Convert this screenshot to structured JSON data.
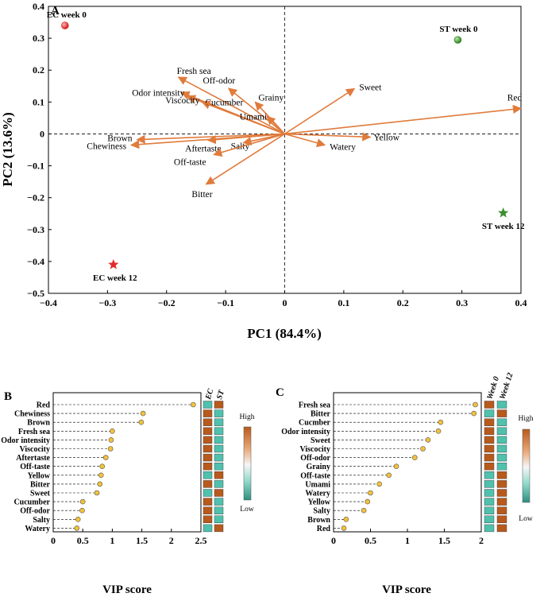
{
  "colors": {
    "arrow": "#e07b3c",
    "high": "#b85a1c",
    "low": "#4fc1ad",
    "ec": "#e32b2b",
    "st": "#3b8f2e",
    "dot": "#f2c23a"
  },
  "chart_data": [
    {
      "type": "scatter",
      "panel": "A",
      "xlabel": "PC1 (84.4%)",
      "ylabel": "PC2 (13.6%)",
      "xlim": [
        -0.4,
        0.4
      ],
      "ylim": [
        -0.5,
        0.4
      ],
      "xticks": [
        -0.4,
        -0.3,
        -0.2,
        -0.1,
        0,
        0.1,
        0.2,
        0.3,
        0.4
      ],
      "yticks": [
        0.4,
        0.3,
        0.2,
        0.1,
        0,
        -0.1,
        -0.2,
        -0.3,
        -0.4,
        -0.5
      ],
      "xtick_labels": [
        "−0.4",
        "−0.3",
        "−0.2",
        "−0.1",
        "0",
        "0.1",
        "0.2",
        "0.3",
        "0.4"
      ],
      "ytick_labels": [
        "0.4",
        "0.3",
        "0.2",
        "0.1",
        "0",
        "−0.1",
        "−0.2",
        "−0.3",
        "−0.4",
        "−0.5"
      ],
      "samples": [
        {
          "name": "EC week 0",
          "x": -0.372,
          "y": 0.34,
          "marker": "circle",
          "color_key": "ec"
        },
        {
          "name": "ST week 0",
          "x": 0.293,
          "y": 0.295,
          "marker": "circle",
          "color_key": "st"
        },
        {
          "name": "EC week 12",
          "x": -0.29,
          "y": -0.41,
          "marker": "star",
          "color_key": "ec"
        },
        {
          "name": "ST week 12",
          "x": 0.37,
          "y": -0.248,
          "marker": "star",
          "color_key": "st"
        }
      ],
      "loadings": [
        {
          "name": "Red",
          "x": 0.4,
          "y": 0.08
        },
        {
          "name": "Sweet",
          "x": 0.118,
          "y": 0.142
        },
        {
          "name": "Yellow",
          "x": 0.145,
          "y": -0.01
        },
        {
          "name": "Watery",
          "x": 0.068,
          "y": -0.035
        },
        {
          "name": "Fresh sea",
          "x": -0.18,
          "y": 0.178
        },
        {
          "name": "Off-odor",
          "x": -0.095,
          "y": 0.143
        },
        {
          "name": "Odor intensity",
          "x": -0.175,
          "y": 0.13
        },
        {
          "name": "Cucumber",
          "x": -0.14,
          "y": 0.1
        },
        {
          "name": "Viscocity",
          "x": -0.165,
          "y": 0.118
        },
        {
          "name": "Grainy",
          "x": -0.05,
          "y": 0.1
        },
        {
          "name": "Umami",
          "x": -0.03,
          "y": 0.055
        },
        {
          "name": "Brown",
          "x": -0.25,
          "y": -0.018
        },
        {
          "name": "Chewiness",
          "x": -0.26,
          "y": -0.035
        },
        {
          "name": "Aftertaste",
          "x": -0.13,
          "y": -0.02
        },
        {
          "name": "Salty",
          "x": -0.07,
          "y": -0.028
        },
        {
          "name": "Off-taste",
          "x": -0.12,
          "y": -0.065
        },
        {
          "name": "Bitter",
          "x": -0.133,
          "y": -0.158
        }
      ]
    },
    {
      "type": "scatter",
      "panel": "B",
      "xlabel": "VIP score",
      "xlim": [
        0,
        2.5
      ],
      "xticks": [
        0,
        0.5,
        1,
        1.5,
        2,
        2.5
      ],
      "xtick_labels": [
        "0",
        "0.5",
        "1",
        "1.5",
        "2",
        "2.5"
      ],
      "columns": [
        "EC",
        "ST"
      ],
      "legend": {
        "high": "High",
        "low": "Low"
      },
      "rows": [
        {
          "name": "Red",
          "vip": 2.37,
          "cells": [
            "low",
            "high"
          ]
        },
        {
          "name": "Chewiness",
          "vip": 1.52,
          "cells": [
            "high",
            "low"
          ]
        },
        {
          "name": "Brown",
          "vip": 1.49,
          "cells": [
            "high",
            "low"
          ]
        },
        {
          "name": "Fresh sea",
          "vip": 1.0,
          "cells": [
            "high",
            "low"
          ]
        },
        {
          "name": "Odor intensity",
          "vip": 0.98,
          "cells": [
            "high",
            "low"
          ]
        },
        {
          "name": "Viscocity",
          "vip": 0.97,
          "cells": [
            "high",
            "low"
          ]
        },
        {
          "name": "Aftertaste",
          "vip": 0.89,
          "cells": [
            "high",
            "low"
          ]
        },
        {
          "name": "Off-taste",
          "vip": 0.83,
          "cells": [
            "high",
            "low"
          ]
        },
        {
          "name": "Yellow",
          "vip": 0.81,
          "cells": [
            "low",
            "high"
          ]
        },
        {
          "name": "Bitter",
          "vip": 0.79,
          "cells": [
            "high",
            "low"
          ]
        },
        {
          "name": "Sweet",
          "vip": 0.74,
          "cells": [
            "low",
            "high"
          ]
        },
        {
          "name": "Cucumber",
          "vip": 0.5,
          "cells": [
            "high",
            "low"
          ]
        },
        {
          "name": "Off-odor",
          "vip": 0.49,
          "cells": [
            "high",
            "low"
          ]
        },
        {
          "name": "Salty",
          "vip": 0.42,
          "cells": [
            "high",
            "low"
          ]
        },
        {
          "name": "Watery",
          "vip": 0.4,
          "cells": [
            "low",
            "high"
          ]
        }
      ]
    },
    {
      "type": "scatter",
      "panel": "C",
      "xlabel": "VIP score",
      "xlim": [
        0,
        2
      ],
      "xticks": [
        0,
        0.5,
        1,
        1.5,
        2
      ],
      "xtick_labels": [
        "0",
        "0.5",
        "1",
        "1.5",
        "2"
      ],
      "columns": [
        "Week 0",
        "Week 12"
      ],
      "legend": {
        "high": "High",
        "low": "Low"
      },
      "rows": [
        {
          "name": "Fresh sea",
          "vip": 1.92,
          "cells": [
            "high",
            "low"
          ]
        },
        {
          "name": "Bitter",
          "vip": 1.9,
          "cells": [
            "low",
            "high"
          ]
        },
        {
          "name": "Cucmber",
          "vip": 1.45,
          "cells": [
            "high",
            "low"
          ]
        },
        {
          "name": "Odor intensity",
          "vip": 1.42,
          "cells": [
            "high",
            "low"
          ]
        },
        {
          "name": "Sweet",
          "vip": 1.28,
          "cells": [
            "high",
            "low"
          ]
        },
        {
          "name": "Viscocity",
          "vip": 1.21,
          "cells": [
            "high",
            "low"
          ]
        },
        {
          "name": "Off-odor",
          "vip": 1.1,
          "cells": [
            "high",
            "low"
          ]
        },
        {
          "name": "Grainy",
          "vip": 0.85,
          "cells": [
            "high",
            "low"
          ]
        },
        {
          "name": "Off-taste",
          "vip": 0.75,
          "cells": [
            "low",
            "high"
          ]
        },
        {
          "name": "Umami",
          "vip": 0.62,
          "cells": [
            "low",
            "high"
          ]
        },
        {
          "name": "Watery",
          "vip": 0.5,
          "cells": [
            "low",
            "high"
          ]
        },
        {
          "name": "Yellow",
          "vip": 0.46,
          "cells": [
            "low",
            "high"
          ]
        },
        {
          "name": "Salty",
          "vip": 0.41,
          "cells": [
            "low",
            "high"
          ]
        },
        {
          "name": "Brown",
          "vip": 0.17,
          "cells": [
            "low",
            "high"
          ]
        },
        {
          "name": "Red",
          "vip": 0.14,
          "cells": [
            "low",
            "high"
          ]
        }
      ]
    }
  ]
}
